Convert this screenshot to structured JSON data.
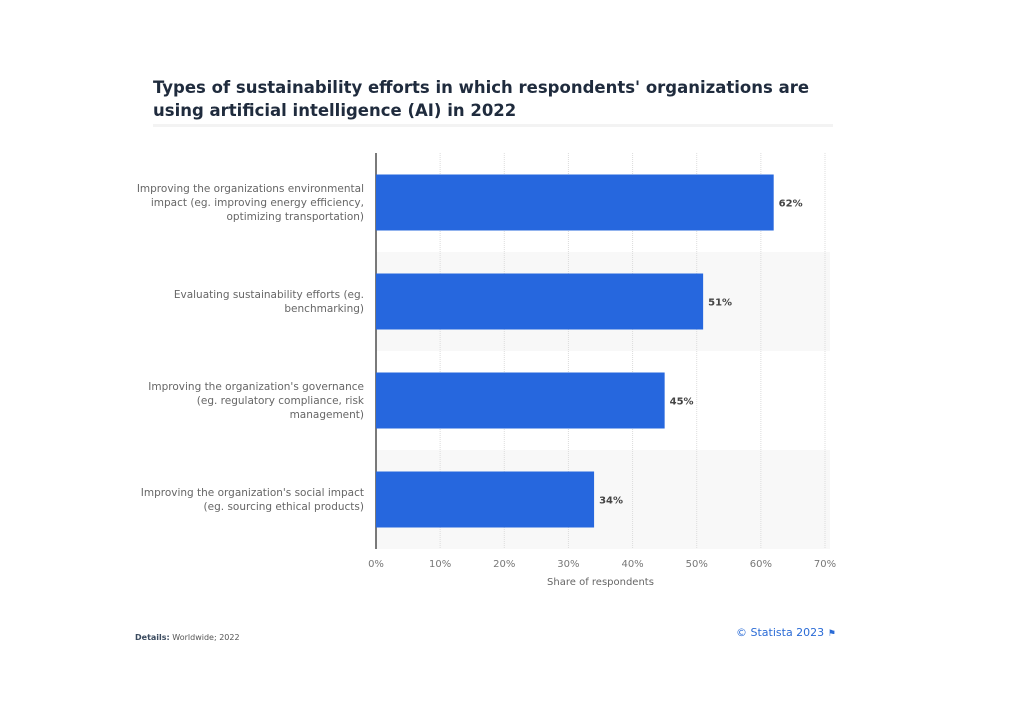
{
  "chart_data": {
    "type": "bar",
    "orientation": "horizontal",
    "title": "Types of sustainability efforts in which respondents' organizations are using artificial intelligence (AI) in 2022",
    "categories": [
      "Improving the organizations environmental impact (eg. improving energy efficiency, optimizing transportation)",
      "Evaluating sustainability efforts (eg. benchmarking)",
      "Improving the organization's governance (eg. regulatory compliance, risk management)",
      "Improving the organization's social impact (eg. sourcing ethical products)"
    ],
    "values": [
      62,
      51,
      45,
      34
    ],
    "data_labels": [
      "62%",
      "51%",
      "45%",
      "34%"
    ],
    "xlabel": "Share of respondents",
    "ylabel": "",
    "xlim": [
      0,
      70
    ],
    "ticks": [
      "0%",
      "10%",
      "20%",
      "30%",
      "40%",
      "50%",
      "60%",
      "70%"
    ],
    "grid": true,
    "bar_color": "#2667de"
  },
  "footer": {
    "details_label": "Details:",
    "details_value": "Worldwide; 2022",
    "credit": "© Statista 2023",
    "flag_icon": "flag-icon"
  }
}
